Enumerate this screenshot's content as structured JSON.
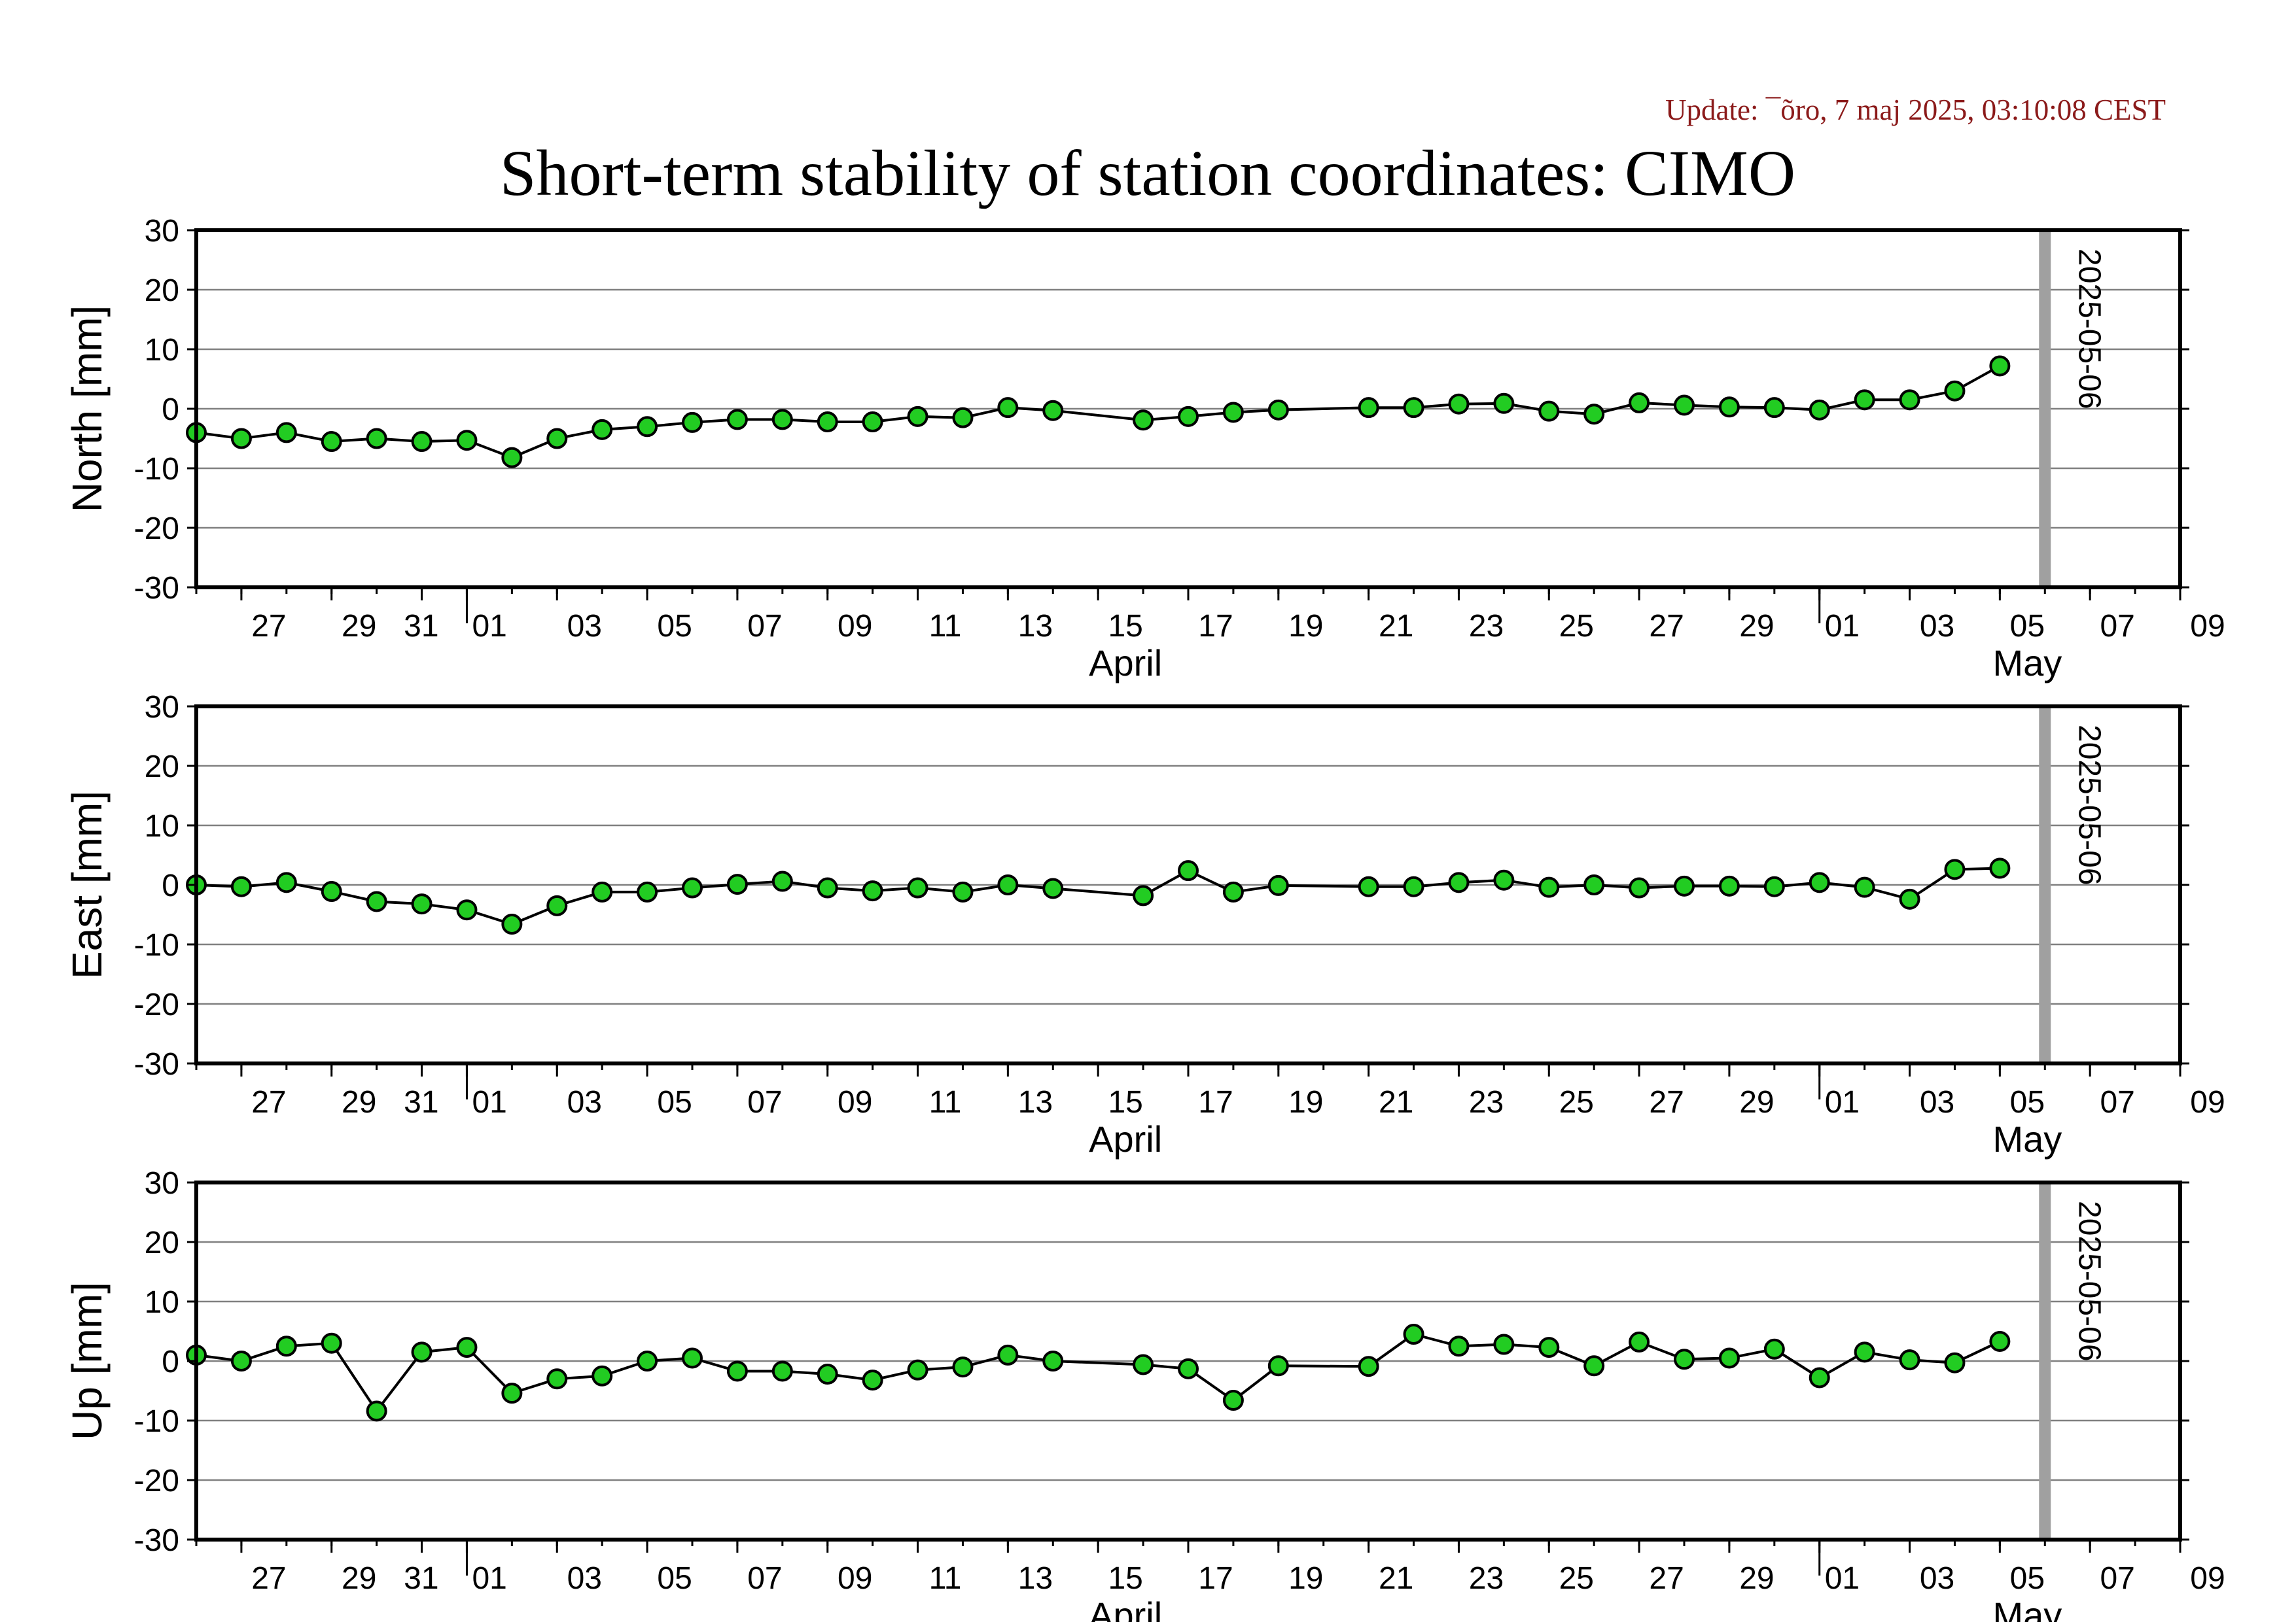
{
  "header": {
    "update": "Update: ¯õro, 7 maj 2025, 03:10:08 CEST",
    "title": "Short-term stability of station coordinates: CIMO"
  },
  "style": {
    "marker_fill": "#22cc22",
    "marker_stroke": "#000000",
    "line_color": "#000000",
    "grid_color": "#808080",
    "vline_color": "#a0a0a0",
    "update_color": "#8b1a1a"
  },
  "axis": {
    "x_range": [
      "2025-03-26",
      "2025-05-09"
    ],
    "x_tick_labels": [
      "27",
      "29",
      "31",
      "01",
      "03",
      "05",
      "07",
      "09",
      "11",
      "13",
      "15",
      "17",
      "19",
      "21",
      "23",
      "25",
      "27",
      "29",
      "01",
      "03",
      "05",
      "07",
      "09"
    ],
    "x_tick_dates": [
      "2025-03-27",
      "2025-03-29",
      "2025-03-31",
      "2025-04-01",
      "2025-04-03",
      "2025-04-05",
      "2025-04-07",
      "2025-04-09",
      "2025-04-11",
      "2025-04-13",
      "2025-04-15",
      "2025-04-17",
      "2025-04-19",
      "2025-04-21",
      "2025-04-23",
      "2025-04-25",
      "2025-04-27",
      "2025-04-29",
      "2025-05-01",
      "2025-05-03",
      "2025-05-05",
      "2025-05-07",
      "2025-05-09"
    ],
    "month_labels": [
      {
        "label": "April",
        "date": "2025-04-15"
      },
      {
        "label": "May",
        "date": "2025-05-05"
      }
    ],
    "month_boundaries": [
      "2025-04-01",
      "2025-05-01"
    ],
    "y_ticks": [
      30,
      20,
      10,
      0,
      -10,
      -20,
      -30
    ],
    "ylim": [
      -30,
      30
    ],
    "grid": true,
    "marker_date": "2025-05-06",
    "marker_label": "2025-05-06"
  },
  "chart_data": [
    {
      "type": "scatter",
      "ylabel": "North [mm]",
      "series": [
        {
          "x": [
            "2025-03-26",
            "2025-03-27",
            "2025-03-28",
            "2025-03-29",
            "2025-03-30",
            "2025-03-31",
            "2025-04-01",
            "2025-04-02",
            "2025-04-03",
            "2025-04-04",
            "2025-04-05",
            "2025-04-06",
            "2025-04-07",
            "2025-04-08",
            "2025-04-09",
            "2025-04-10",
            "2025-04-11",
            "2025-04-12",
            "2025-04-13",
            "2025-04-14",
            "2025-04-16",
            "2025-04-17",
            "2025-04-18",
            "2025-04-19",
            "2025-04-21",
            "2025-04-22",
            "2025-04-23",
            "2025-04-24",
            "2025-04-25",
            "2025-04-26",
            "2025-04-27",
            "2025-04-28",
            "2025-04-29",
            "2025-04-30",
            "2025-05-01",
            "2025-05-02",
            "2025-05-03",
            "2025-05-04",
            "2025-05-05"
          ],
          "values": [
            -4,
            -5,
            -4,
            -5.5,
            -5,
            -5.5,
            -5.3,
            -8.2,
            -5,
            -3.5,
            -3,
            -2.3,
            -1.8,
            -1.8,
            -2.2,
            -2.2,
            -1.3,
            -1.5,
            0.2,
            -0.3,
            -1.9,
            -1.3,
            -0.6,
            -0.2,
            0.2,
            0.2,
            0.8,
            0.9,
            -0.4,
            -0.9,
            1,
            0.6,
            0.3,
            0.2,
            -0.2,
            1.5,
            1.5,
            3,
            7.2
          ]
        }
      ]
    },
    {
      "type": "scatter",
      "ylabel": "East [mm]",
      "series": [
        {
          "x": [
            "2025-03-26",
            "2025-03-27",
            "2025-03-28",
            "2025-03-29",
            "2025-03-30",
            "2025-03-31",
            "2025-04-01",
            "2025-04-02",
            "2025-04-03",
            "2025-04-04",
            "2025-04-05",
            "2025-04-06",
            "2025-04-07",
            "2025-04-08",
            "2025-04-09",
            "2025-04-10",
            "2025-04-11",
            "2025-04-12",
            "2025-04-13",
            "2025-04-14",
            "2025-04-16",
            "2025-04-17",
            "2025-04-18",
            "2025-04-19",
            "2025-04-21",
            "2025-04-22",
            "2025-04-23",
            "2025-04-24",
            "2025-04-25",
            "2025-04-26",
            "2025-04-27",
            "2025-04-28",
            "2025-04-29",
            "2025-04-30",
            "2025-05-01",
            "2025-05-02",
            "2025-05-03",
            "2025-05-04",
            "2025-05-05"
          ],
          "values": [
            0,
            -0.3,
            0.4,
            -1.1,
            -2.8,
            -3.2,
            -4.2,
            -6.6,
            -3.5,
            -1.2,
            -1.2,
            -0.5,
            0.1,
            0.6,
            -0.5,
            -1,
            -0.5,
            -1.2,
            0,
            -0.6,
            -1.8,
            2.4,
            -1.2,
            -0.1,
            -0.3,
            -0.3,
            0.4,
            0.8,
            -0.4,
            0,
            -0.5,
            -0.2,
            -0.2,
            -0.3,
            0.4,
            -0.4,
            -2.4,
            2.6,
            2.8
          ]
        }
      ]
    },
    {
      "type": "scatter",
      "ylabel": "Up [mm]",
      "series": [
        {
          "x": [
            "2025-03-26",
            "2025-03-27",
            "2025-03-28",
            "2025-03-29",
            "2025-03-30",
            "2025-03-31",
            "2025-04-01",
            "2025-04-02",
            "2025-04-03",
            "2025-04-04",
            "2025-04-05",
            "2025-04-06",
            "2025-04-07",
            "2025-04-08",
            "2025-04-09",
            "2025-04-10",
            "2025-04-11",
            "2025-04-12",
            "2025-04-13",
            "2025-04-14",
            "2025-04-16",
            "2025-04-17",
            "2025-04-18",
            "2025-04-19",
            "2025-04-21",
            "2025-04-22",
            "2025-04-23",
            "2025-04-24",
            "2025-04-25",
            "2025-04-26",
            "2025-04-27",
            "2025-04-28",
            "2025-04-29",
            "2025-04-30",
            "2025-05-01",
            "2025-05-02",
            "2025-05-03",
            "2025-05-04",
            "2025-05-05"
          ],
          "values": [
            1,
            0,
            2.5,
            3,
            -8.4,
            1.5,
            2.3,
            -5.4,
            -3,
            -2.5,
            0,
            0.5,
            -1.7,
            -1.7,
            -2.2,
            -3.2,
            -1.5,
            -1,
            1,
            0,
            -0.6,
            -1.3,
            -6.6,
            -0.8,
            -0.9,
            4.5,
            2.5,
            2.8,
            2.3,
            -0.8,
            3.2,
            0.3,
            0.5,
            2,
            -2.8,
            1.5,
            0.2,
            -0.3,
            3.3
          ]
        }
      ]
    }
  ]
}
